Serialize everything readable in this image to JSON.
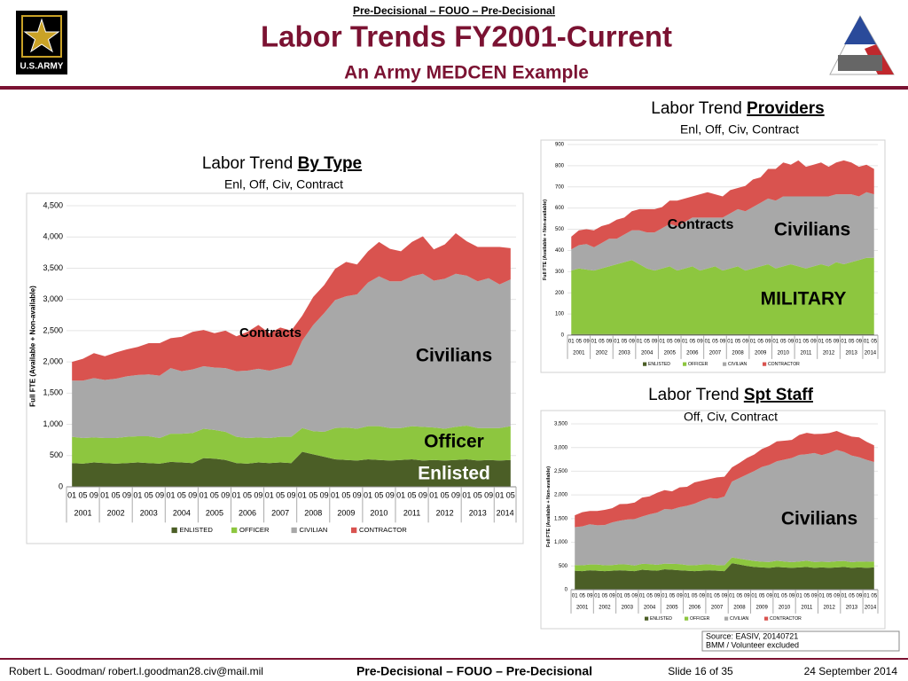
{
  "slide": {
    "classification_top": "Pre-Decisional – FOUO – Pre-Decisional",
    "title": "Labor Trends FY2001-Current",
    "subtitle": "An Army MEDCEN Example",
    "logo_text": "U.S.ARMY",
    "source": [
      "Source: EASIV, 20140721",
      "BMM / Volunteer excluded"
    ],
    "footer": {
      "author": "Robert L. Goodman/ robert.l.goodman28.civ@mail.mil",
      "classification": "Pre-Decisional – FOUO – Pre-Decisional",
      "slide_number": "Slide 16 of 35",
      "date": "24 September 2014"
    }
  },
  "chart_data": [
    {
      "type": "stacked_area",
      "title": "Labor Trend",
      "title_emphasis": "By Type",
      "subtitle": "Enl, Off, Civ, Contract",
      "ylabel": "Full FTE (Available + Non-available)",
      "categories": [
        "01",
        "05",
        "09",
        "01",
        "05",
        "09",
        "01",
        "05",
        "09",
        "01",
        "05",
        "09",
        "01",
        "05",
        "09",
        "01",
        "05",
        "09",
        "01",
        "05",
        "09",
        "01",
        "05",
        "09",
        "01",
        "05",
        "09",
        "01",
        "05",
        "09",
        "01",
        "05",
        "09",
        "01",
        "05",
        "09",
        "01",
        "05",
        "09",
        "01",
        "05"
      ],
      "years": [
        "2001",
        "2002",
        "2003",
        "2004",
        "2005",
        "2006",
        "2007",
        "2008",
        "2009",
        "2010",
        "2011",
        "2012",
        "2013",
        "2014"
      ],
      "ylim": [
        0,
        4500
      ],
      "yticks": [
        0,
        500,
        {
          "value": 1000,
          "label": "1,000"
        },
        {
          "value": 1500,
          "label": "1,500"
        },
        {
          "value": 2000,
          "label": "2,000"
        },
        {
          "value": 2500,
          "label": "2,500"
        },
        {
          "value": 3000,
          "label": "3,000"
        },
        {
          "value": 3500,
          "label": "3,500"
        },
        {
          "value": 4000,
          "label": "4,000"
        },
        {
          "value": 4500,
          "label": "4,500"
        }
      ],
      "series": [
        {
          "name": "ENLISTED",
          "color": "#4b5e26",
          "values": [
            380,
            370,
            390,
            380,
            370,
            380,
            390,
            380,
            370,
            400,
            390,
            380,
            460,
            450,
            430,
            380,
            370,
            390,
            380,
            390,
            380,
            560,
            520,
            480,
            440,
            430,
            420,
            440,
            430,
            420,
            430,
            440,
            420,
            430,
            420,
            430,
            440,
            420,
            430,
            420,
            430
          ]
        },
        {
          "name": "OFFICER",
          "color": "#8dc63f",
          "values": [
            420,
            410,
            400,
            400,
            410,
            420,
            420,
            430,
            410,
            450,
            460,
            480,
            470,
            460,
            450,
            420,
            410,
            400,
            400,
            410,
            420,
            380,
            370,
            400,
            500,
            520,
            510,
            530,
            540,
            520,
            510,
            530,
            540,
            520,
            510,
            530,
            540,
            520,
            510,
            520,
            540
          ]
        },
        {
          "name": "CIVILIAN",
          "color": "#a8a8a8",
          "values": [
            900,
            920,
            950,
            930,
            950,
            970,
            980,
            990,
            1000,
            1050,
            1000,
            1020,
            1000,
            1000,
            1020,
            1050,
            1080,
            1100,
            1080,
            1100,
            1150,
            1400,
            1700,
            1900,
            2050,
            2100,
            2150,
            2300,
            2400,
            2350,
            2350,
            2400,
            2450,
            2350,
            2400,
            2450,
            2400,
            2350,
            2400,
            2300,
            2350
          ]
        },
        {
          "name": "CONTRACTOR",
          "color": "#d9534f",
          "values": [
            300,
            350,
            400,
            380,
            420,
            430,
            450,
            500,
            520,
            480,
            550,
            600,
            580,
            550,
            600,
            560,
            620,
            700,
            600,
            650,
            550,
            400,
            450,
            450,
            500,
            550,
            480,
            500,
            550,
            520,
            480,
            550,
            600,
            500,
            550,
            650,
            550,
            550,
            500,
            600,
            500
          ]
        }
      ],
      "annotations": [
        "Contracts",
        "Civilians",
        "Officer",
        "Enlisted"
      ]
    },
    {
      "type": "stacked_area",
      "title": "Labor Trend",
      "title_emphasis": "Providers",
      "subtitle": "Enl, Off, Civ, Contract",
      "ylabel": "Full FTE (Available + Non-available)",
      "categories": [
        "01",
        "05",
        "09",
        "01",
        "05",
        "09",
        "01",
        "05",
        "09",
        "01",
        "05",
        "09",
        "01",
        "05",
        "09",
        "01",
        "05",
        "09",
        "01",
        "05",
        "09",
        "01",
        "05",
        "09",
        "01",
        "05",
        "09",
        "01",
        "05",
        "09",
        "01",
        "05",
        "09",
        "01",
        "05",
        "09",
        "01",
        "05",
        "09",
        "01",
        "05"
      ],
      "years": [
        "2001",
        "2002",
        "2003",
        "2004",
        "2005",
        "2006",
        "2007",
        "2008",
        "2009",
        "2010",
        "2011",
        "2012",
        "2013",
        "2014"
      ],
      "ylim": [
        0,
        900
      ],
      "yticks": [
        0,
        100,
        200,
        300,
        400,
        500,
        600,
        700,
        800,
        900
      ],
      "series": [
        {
          "name": "ENLISTED",
          "color": "#4b5e26",
          "values": [
            5,
            5,
            5,
            5,
            5,
            5,
            5,
            5,
            5,
            5,
            5,
            5,
            5,
            5,
            5,
            5,
            5,
            5,
            5,
            5,
            5,
            5,
            5,
            5,
            5,
            5,
            5,
            5,
            5,
            5,
            5,
            5,
            5,
            5,
            5,
            5,
            5,
            5,
            5,
            5,
            5
          ]
        },
        {
          "name": "OFFICER",
          "color": "#8dc63f",
          "values": [
            300,
            310,
            305,
            300,
            310,
            320,
            330,
            340,
            350,
            330,
            310,
            300,
            310,
            320,
            300,
            310,
            320,
            300,
            310,
            320,
            300,
            310,
            320,
            300,
            310,
            320,
            330,
            310,
            320,
            330,
            320,
            310,
            320,
            330,
            320,
            340,
            330,
            340,
            350,
            360,
            360
          ]
        },
        {
          "name": "CIVILIAN",
          "color": "#a8a8a8",
          "values": [
            100,
            110,
            120,
            110,
            120,
            130,
            120,
            130,
            140,
            160,
            170,
            180,
            190,
            200,
            210,
            220,
            230,
            250,
            240,
            230,
            250,
            260,
            270,
            280,
            290,
            300,
            310,
            320,
            330,
            320,
            330,
            340,
            330,
            320,
            330,
            320,
            330,
            320,
            300,
            310,
            300
          ]
        },
        {
          "name": "CONTRACTOR",
          "color": "#d9534f",
          "values": [
            60,
            70,
            70,
            80,
            80,
            70,
            90,
            80,
            90,
            100,
            110,
            110,
            100,
            110,
            120,
            110,
            100,
            110,
            120,
            110,
            100,
            110,
            100,
            120,
            130,
            120,
            140,
            150,
            160,
            150,
            170,
            140,
            150,
            160,
            140,
            150,
            160,
            150,
            140,
            130,
            120
          ]
        }
      ],
      "annotations": [
        "Contracts",
        "Civilians",
        "MILITARY"
      ]
    },
    {
      "type": "stacked_area",
      "title": "Labor Trend",
      "title_emphasis": "Spt Staff",
      "subtitle": "Off, Civ, Contract",
      "ylabel": "Full FTE (Available + Non-available)",
      "categories": [
        "01",
        "05",
        "09",
        "01",
        "05",
        "09",
        "01",
        "05",
        "09",
        "01",
        "05",
        "09",
        "01",
        "05",
        "09",
        "01",
        "05",
        "09",
        "01",
        "05",
        "09",
        "01",
        "05",
        "09",
        "01",
        "05",
        "09",
        "01",
        "05",
        "09",
        "01",
        "05",
        "09",
        "01",
        "05",
        "09",
        "01",
        "05",
        "09",
        "01",
        "05"
      ],
      "years": [
        "2001",
        "2002",
        "2003",
        "2004",
        "2005",
        "2006",
        "2007",
        "2008",
        "2009",
        "2010",
        "2011",
        "2012",
        "2013",
        "2014"
      ],
      "ylim": [
        0,
        3500
      ],
      "yticks": [
        0,
        500,
        {
          "value": 1000,
          "label": "1,000"
        },
        {
          "value": 1500,
          "label": "1,500"
        },
        {
          "value": 2000,
          "label": "2,000"
        },
        {
          "value": 2500,
          "label": "2,500"
        },
        {
          "value": 3000,
          "label": "3,000"
        },
        {
          "value": 3500,
          "label": "3,500"
        }
      ],
      "series": [
        {
          "name": "ENLISTED",
          "color": "#4b5e26",
          "values": [
            400,
            390,
            410,
            400,
            390,
            400,
            410,
            400,
            390,
            420,
            410,
            400,
            430,
            420,
            410,
            400,
            390,
            400,
            410,
            400,
            390,
            560,
            530,
            500,
            480,
            470,
            460,
            480,
            470,
            460,
            470,
            480,
            460,
            470,
            460,
            470,
            480,
            460,
            470,
            460,
            470
          ]
        },
        {
          "name": "OFFICER",
          "color": "#8dc63f",
          "values": [
            120,
            125,
            120,
            130,
            125,
            120,
            125,
            130,
            120,
            125,
            130,
            125,
            120,
            125,
            130,
            120,
            125,
            130,
            125,
            120,
            125,
            120,
            125,
            130,
            125,
            120,
            125,
            130,
            125,
            120,
            125,
            130,
            125,
            120,
            125,
            130,
            125,
            120,
            125,
            130,
            125
          ]
        },
        {
          "name": "CIVILIAN",
          "color": "#a8a8a8",
          "values": [
            800,
            820,
            850,
            830,
            850,
            900,
            920,
            950,
            980,
            1000,
            1050,
            1100,
            1150,
            1150,
            1200,
            1250,
            1300,
            1350,
            1400,
            1400,
            1450,
            1600,
            1700,
            1800,
            1900,
            2000,
            2050,
            2100,
            2150,
            2200,
            2250,
            2250,
            2300,
            2250,
            2300,
            2350,
            2300,
            2250,
            2200,
            2150,
            2100
          ]
        },
        {
          "name": "CONTRACTOR",
          "color": "#d9534f",
          "values": [
            250,
            300,
            280,
            300,
            320,
            300,
            350,
            330,
            350,
            400,
            380,
            420,
            400,
            380,
            420,
            400,
            450,
            420,
            400,
            450,
            420,
            300,
            320,
            350,
            350,
            380,
            400,
            420,
            400,
            380,
            420,
            450,
            400,
            450,
            420,
            400,
            380,
            400,
            420,
            380,
            350
          ]
        }
      ],
      "annotations": [
        "Civilians"
      ]
    }
  ]
}
